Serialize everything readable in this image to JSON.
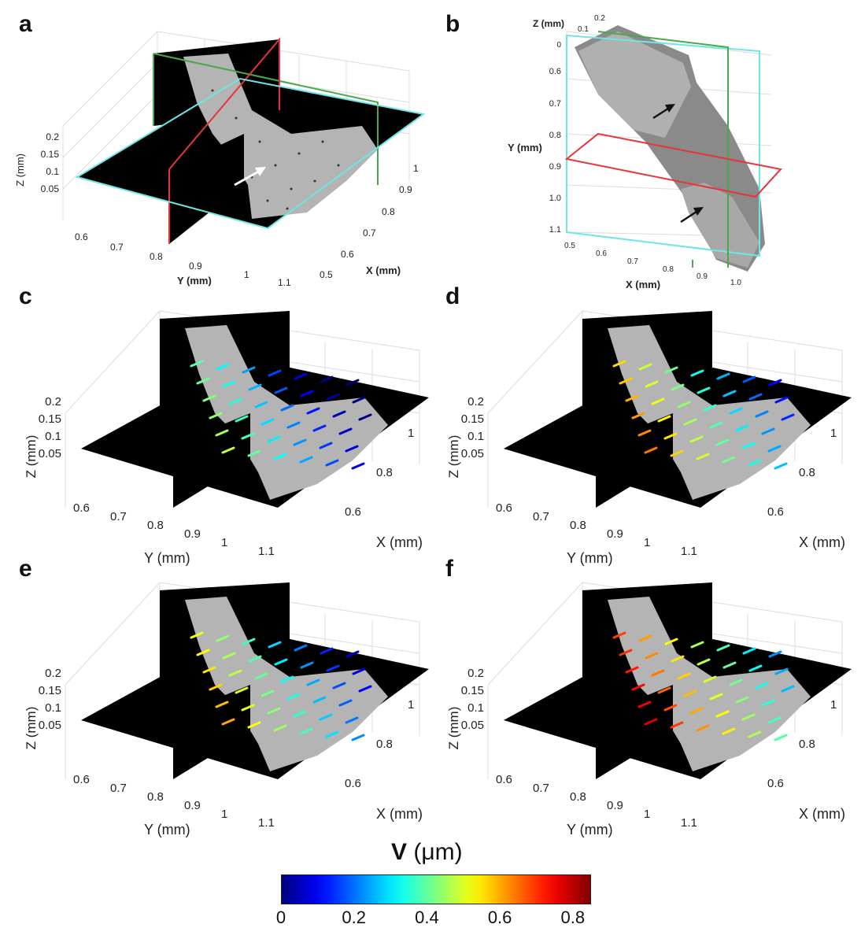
{
  "panels": [
    {
      "id": "a",
      "label": "a",
      "z_axis_label": "Z (mm)",
      "y_axis_label": "Y (mm)",
      "x_axis_label": "X (mm)",
      "z_ticks": [
        "0.2",
        "0.15",
        "0.1",
        "0.05"
      ],
      "y_ticks": [
        "0.6",
        "0.7",
        "0.8",
        "0.9",
        "1",
        "1.1"
      ],
      "x_ticks": [
        "1",
        "0.9",
        "0.8",
        "0.7",
        "0.6",
        "0.5"
      ]
    },
    {
      "id": "b",
      "label": "b",
      "z_axis_label": "Z (mm)",
      "y_axis_label": "Y (mm)",
      "x_axis_label": "X (mm)",
      "z_ticks": [
        "0",
        "0.1",
        "0.2"
      ],
      "y_ticks": [
        "0.6",
        "0.7",
        "0.8",
        "0.9",
        "1.0",
        "1.1"
      ],
      "x_ticks": [
        "0.5",
        "0.6",
        "0.7",
        "0.8",
        "0.9",
        "1.0"
      ]
    },
    {
      "id": "c",
      "label": "c",
      "z_axis_label": "Z (mm)",
      "y_axis_label": "Y (mm)",
      "x_axis_label": "X (mm)",
      "z_ticks": [
        "0.2",
        "0.15",
        "0.1",
        "0.05"
      ],
      "y_ticks": [
        "0.6",
        "0.7",
        "0.8",
        "0.9",
        "1",
        "1.1"
      ],
      "x_ticks": [
        "1",
        "0.8",
        "0.6"
      ]
    },
    {
      "id": "d",
      "label": "d",
      "z_axis_label": "Z (mm)",
      "y_axis_label": "Y (mm)",
      "x_axis_label": "X (mm)",
      "z_ticks": [
        "0.2",
        "0.15",
        "0.1",
        "0.05"
      ],
      "y_ticks": [
        "0.6",
        "0.7",
        "0.8",
        "0.9",
        "1",
        "1.1"
      ],
      "x_ticks": [
        "1",
        "0.8",
        "0.6"
      ]
    },
    {
      "id": "e",
      "label": "e",
      "z_axis_label": "Z (mm)",
      "y_axis_label": "Y (mm)",
      "x_axis_label": "X (mm)",
      "z_ticks": [
        "0.2",
        "0.15",
        "0.1",
        "0.05"
      ],
      "y_ticks": [
        "0.6",
        "0.7",
        "0.8",
        "0.9",
        "1",
        "1.1"
      ],
      "x_ticks": [
        "1",
        "0.8",
        "0.6"
      ]
    },
    {
      "id": "f",
      "label": "f",
      "z_axis_label": "Z (mm)",
      "y_axis_label": "Y (mm)",
      "x_axis_label": "X (mm)",
      "z_ticks": [
        "0.2",
        "0.15",
        "0.1",
        "0.05"
      ],
      "y_ticks": [
        "0.6",
        "0.7",
        "0.8",
        "0.9",
        "1",
        "1.1"
      ],
      "x_ticks": [
        "1",
        "0.8",
        "0.6"
      ]
    }
  ],
  "colorbar": {
    "title_symbol": "V",
    "title_unit": " (μm)",
    "ticks": [
      "0",
      "0.2",
      "0.4",
      "0.6",
      "0.8"
    ],
    "tick_values": [
      0,
      0.2,
      0.4,
      0.6,
      0.8
    ],
    "range": [
      0,
      0.85
    ],
    "colormap": "jet"
  },
  "colors": {
    "black_plane": "#000000",
    "bone_gray": "#b4b4b4",
    "plane_red": "#e8333a",
    "plane_green": "#4aa84a",
    "plane_cyan": "#6ee6e6"
  }
}
